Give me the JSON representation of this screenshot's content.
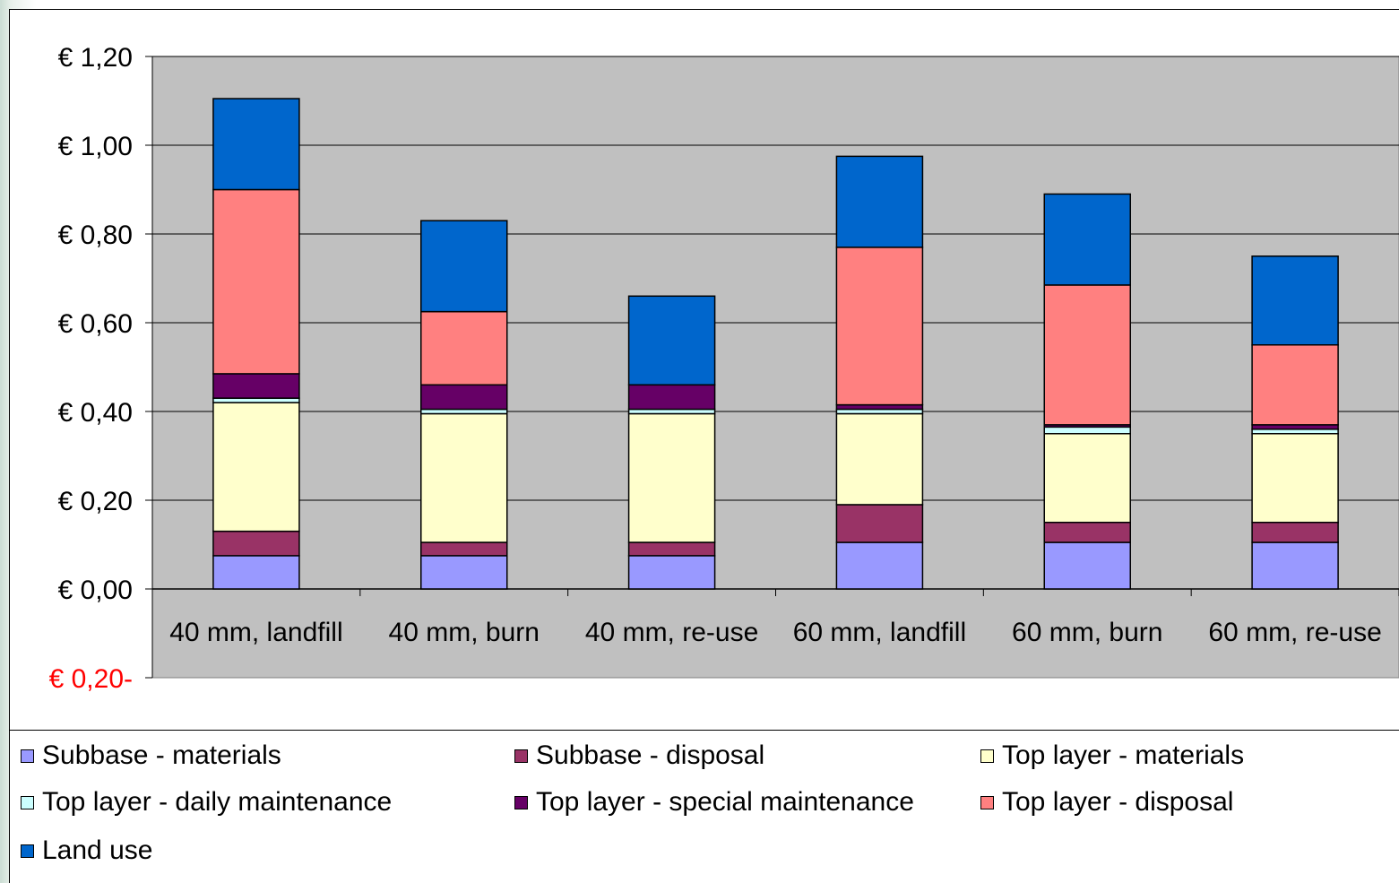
{
  "chart_data": {
    "type": "bar",
    "stacked": true,
    "categories": [
      "40 mm, landfill",
      "40 mm, burn",
      "40 mm, re-use",
      "60 mm, landfill",
      "60 mm, burn",
      "60 mm, re-use"
    ],
    "ylim": [
      -0.2,
      1.2
    ],
    "yticks": [
      1.2,
      1.0,
      0.8,
      0.6,
      0.4,
      0.2,
      0.0
    ],
    "ytick_labels": [
      "€ 1,20",
      "€ 1,00",
      "€ 0,80",
      "€ 0,60",
      "€ 0,40",
      "€ 0,20",
      "€ 0,00"
    ],
    "ytick_bottom_label": "€ 0,20-",
    "ytick_bottom_value": -0.2,
    "ytick_bottom_color": "#ff0000",
    "plot_background": "#c0c0c0",
    "grid": true,
    "legend_position": "bottom",
    "series": [
      {
        "name": "Subbase - materials",
        "color": "#9999ff",
        "values": [
          0.075,
          0.075,
          0.075,
          0.105,
          0.105,
          0.105
        ]
      },
      {
        "name": "Subbase - disposal",
        "color": "#993366",
        "values": [
          0.055,
          0.03,
          0.03,
          0.085,
          0.045,
          0.045
        ]
      },
      {
        "name": "Top layer - materials",
        "color": "#ffffcc",
        "values": [
          0.29,
          0.29,
          0.29,
          0.205,
          0.2,
          0.2
        ]
      },
      {
        "name": "Top layer - daily maintenance",
        "color": "#ccffff",
        "values": [
          0.01,
          0.01,
          0.01,
          0.01,
          0.015,
          0.01
        ]
      },
      {
        "name": "Top layer - special maintenance",
        "color": "#660066",
        "values": [
          0.055,
          0.055,
          0.055,
          0.01,
          0.005,
          0.01
        ]
      },
      {
        "name": "Top layer - disposal",
        "color": "#ff8080",
        "values": [
          0.415,
          0.165,
          0.0,
          0.355,
          0.315,
          0.18
        ]
      },
      {
        "name": "Land use",
        "color": "#0066cc",
        "values": [
          0.205,
          0.205,
          0.2,
          0.205,
          0.205,
          0.2
        ]
      }
    ]
  }
}
